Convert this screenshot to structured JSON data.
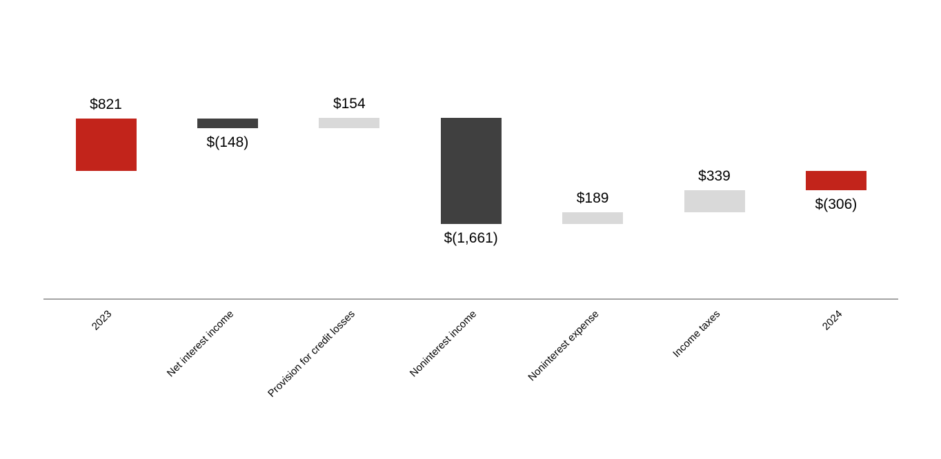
{
  "chart_data": {
    "type": "waterfall",
    "title": "",
    "xlabel": "",
    "ylabel": "",
    "grid": false,
    "legend": null,
    "categories": [
      "2023",
      "Net interest income",
      "Provision for credit losses",
      "Noninterest income",
      "Noninterest expense",
      "Income taxes",
      "2024"
    ],
    "bars": [
      {
        "category": "2023",
        "kind": "total",
        "value": 821,
        "label": "$821",
        "label_position": "above",
        "color_key": "total"
      },
      {
        "category": "Net interest income",
        "kind": "delta",
        "value": -148,
        "label": "$(148)",
        "label_position": "below",
        "color_key": "negative"
      },
      {
        "category": "Provision for credit losses",
        "kind": "delta",
        "value": 154,
        "label": "$154",
        "label_position": "above",
        "color_key": "positive"
      },
      {
        "category": "Noninterest income",
        "kind": "delta",
        "value": -1661,
        "label": "$(1,661)",
        "label_position": "below",
        "color_key": "negative"
      },
      {
        "category": "Noninterest expense",
        "kind": "delta",
        "value": 189,
        "label": "$189",
        "label_position": "above",
        "color_key": "positive"
      },
      {
        "category": "Income taxes",
        "kind": "delta",
        "value": 339,
        "label": "$339",
        "label_position": "above",
        "color_key": "positive"
      },
      {
        "category": "2024",
        "kind": "total",
        "value": -306,
        "label": "$(306)",
        "label_position": "below",
        "color_key": "total"
      }
    ],
    "running_totals": [
      821,
      673,
      827,
      -834,
      -645,
      -306,
      -306
    ],
    "colors": {
      "total": "#C2241B",
      "negative": "#404040",
      "positive": "#D9D9D9",
      "axis": "#A3A3A3",
      "label_text": "#000000"
    }
  }
}
